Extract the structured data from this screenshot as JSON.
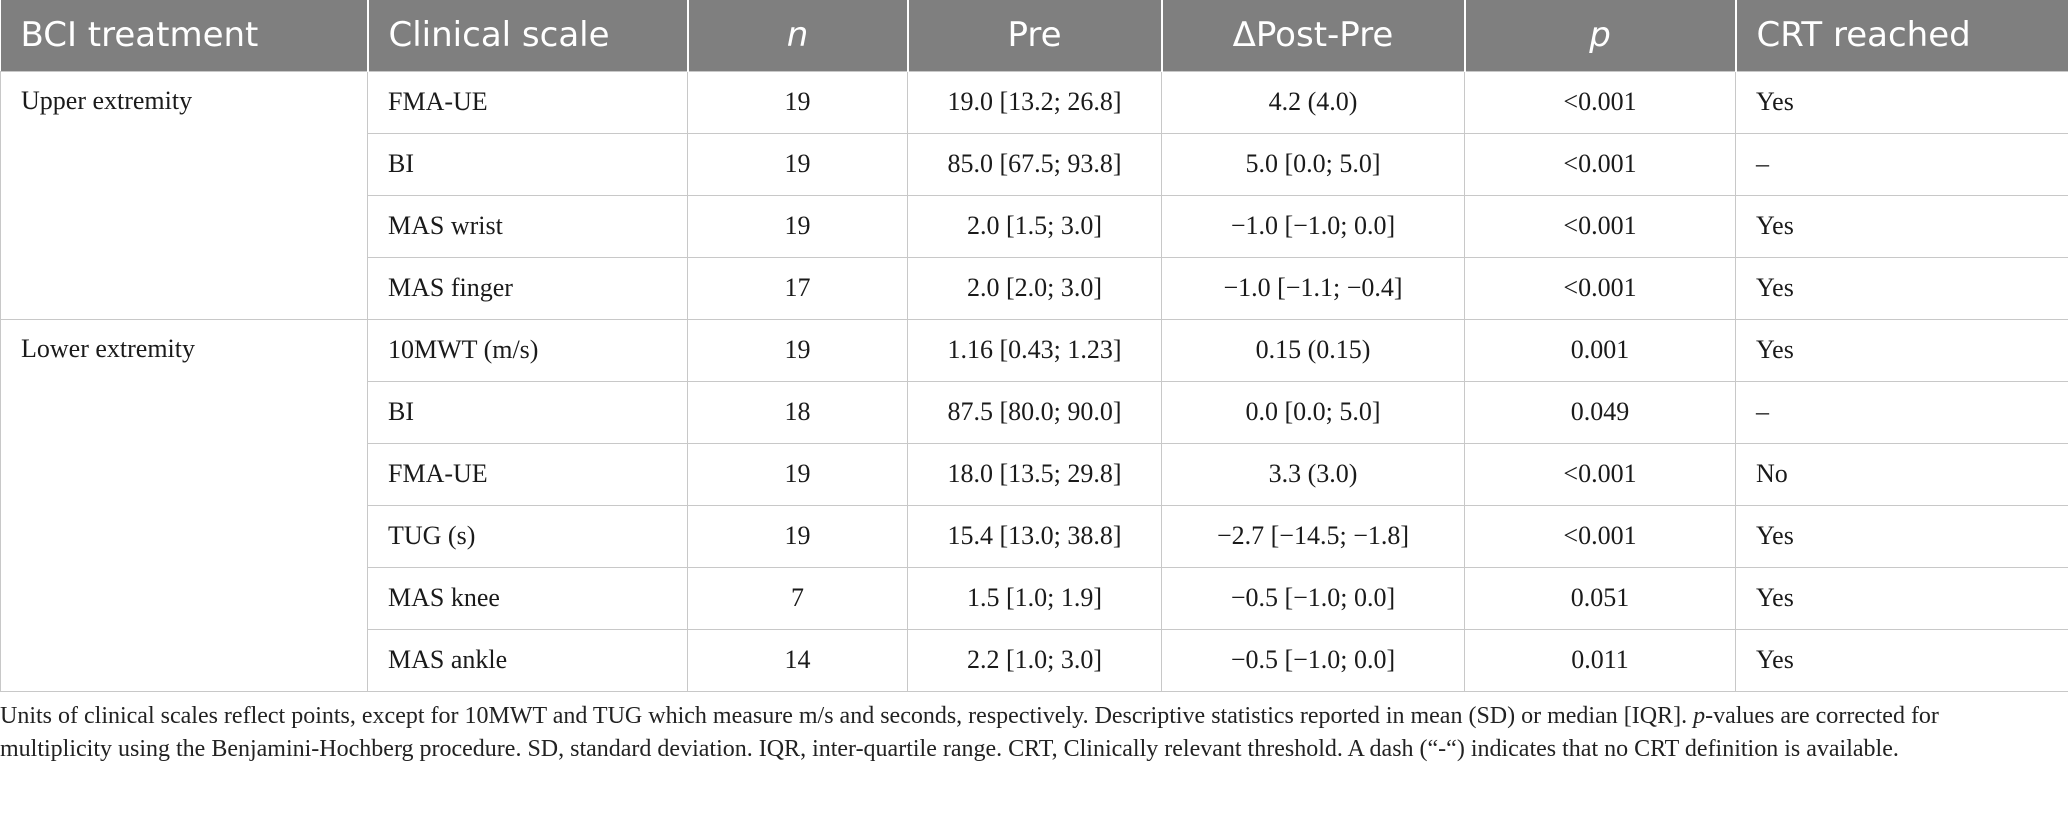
{
  "table": {
    "columns": [
      "BCI treatment",
      "Clinical scale",
      "n",
      "Pre",
      "ΔPost-Pre",
      "p",
      "CRT reached"
    ],
    "groups": [
      {
        "label": "Upper extremity",
        "rows": [
          {
            "scale": "FMA-UE",
            "n": "19",
            "pre": "19.0 [13.2; 26.8]",
            "delta": "4.2 (4.0)",
            "p": "<0.001",
            "crt": "Yes"
          },
          {
            "scale": "BI",
            "n": "19",
            "pre": "85.0 [67.5; 93.8]",
            "delta": "5.0 [0.0; 5.0]",
            "p": "<0.001",
            "crt": "–"
          },
          {
            "scale": "MAS wrist",
            "n": "19",
            "pre": "2.0 [1.5; 3.0]",
            "delta": "−1.0 [−1.0; 0.0]",
            "p": "<0.001",
            "crt": "Yes"
          },
          {
            "scale": "MAS finger",
            "n": "17",
            "pre": "2.0 [2.0; 3.0]",
            "delta": "−1.0 [−1.1; −0.4]",
            "p": "<0.001",
            "crt": "Yes"
          }
        ]
      },
      {
        "label": "Lower extremity",
        "rows": [
          {
            "scale": "10MWT (m/s)",
            "n": "19",
            "pre": "1.16 [0.43; 1.23]",
            "delta": "0.15 (0.15)",
            "p": "0.001",
            "crt": "Yes"
          },
          {
            "scale": "BI",
            "n": "18",
            "pre": "87.5 [80.0; 90.0]",
            "delta": "0.0 [0.0; 5.0]",
            "p": "0.049",
            "crt": "–"
          },
          {
            "scale": "FMA-UE",
            "n": "19",
            "pre": "18.0 [13.5; 29.8]",
            "delta": "3.3 (3.0)",
            "p": "<0.001",
            "crt": "No"
          },
          {
            "scale": "TUG (s)",
            "n": "19",
            "pre": "15.4 [13.0; 38.8]",
            "delta": "−2.7 [−14.5; −1.8]",
            "p": "<0.001",
            "crt": "Yes"
          },
          {
            "scale": "MAS knee",
            "n": "7",
            "pre": "1.5 [1.0; 1.9]",
            "delta": "−0.5 [−1.0; 0.0]",
            "p": "0.051",
            "crt": "Yes"
          },
          {
            "scale": "MAS ankle",
            "n": "14",
            "pre": "2.2 [1.0; 3.0]",
            "delta": "−0.5 [−1.0; 0.0]",
            "p": "0.011",
            "crt": "Yes"
          }
        ]
      }
    ]
  },
  "footnote": {
    "line1": "Units of clinical scales reflect points, except for 10MWT and TUG which measure m/s and seconds, respectively. Descriptive statistics reported in mean (SD) or median [IQR].",
    "p_italic": "p",
    "line2": "-values are corrected for multiplicity using the Benjamini-Hochberg procedure. SD, standard deviation. IQR, inter-quartile range. CRT, Clinically relevant threshold. A dash (“-“) indicates that no CRT definition is available."
  },
  "colors": {
    "header_bg": "#7f7f7f",
    "header_text": "#ffffff",
    "grid": "#c8c8c8"
  }
}
